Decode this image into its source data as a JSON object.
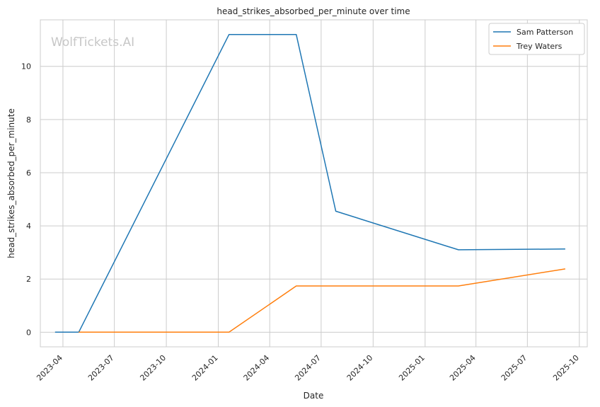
{
  "watermark": "WolfTickets.AI",
  "chart_data": {
    "type": "line",
    "title": "head_strikes_absorbed_per_minute over time",
    "xlabel": "Date",
    "ylabel": "head_strikes_absorbed_per_minute",
    "xlim": [
      "2023-02-20",
      "2025-10-15"
    ],
    "ylim": [
      -0.55,
      11.75
    ],
    "grid": true,
    "legend_position": "top-right",
    "x_ticks": [
      "2023-04",
      "2023-07",
      "2023-10",
      "2024-01",
      "2024-04",
      "2024-07",
      "2024-10",
      "2025-01",
      "2025-04",
      "2025-07",
      "2025-10"
    ],
    "y_ticks": [
      0,
      2,
      4,
      6,
      8,
      10
    ],
    "series": [
      {
        "name": "Sam Patterson",
        "color": "#1f77b4",
        "points": [
          {
            "x": "2023-03-18",
            "y": 0.0
          },
          {
            "x": "2023-04-29",
            "y": 0.0
          },
          {
            "x": "2024-01-20",
            "y": 11.2
          },
          {
            "x": "2024-05-18",
            "y": 11.2
          },
          {
            "x": "2024-07-27",
            "y": 4.55
          },
          {
            "x": "2025-03-01",
            "y": 3.1
          },
          {
            "x": "2025-09-06",
            "y": 3.13
          }
        ]
      },
      {
        "name": "Trey Waters",
        "color": "#ff7f0e",
        "points": [
          {
            "x": "2023-04-29",
            "y": 0.0
          },
          {
            "x": "2024-01-20",
            "y": 0.0
          },
          {
            "x": "2024-05-18",
            "y": 1.74
          },
          {
            "x": "2025-03-01",
            "y": 1.74
          },
          {
            "x": "2025-09-06",
            "y": 2.38
          }
        ]
      }
    ]
  }
}
